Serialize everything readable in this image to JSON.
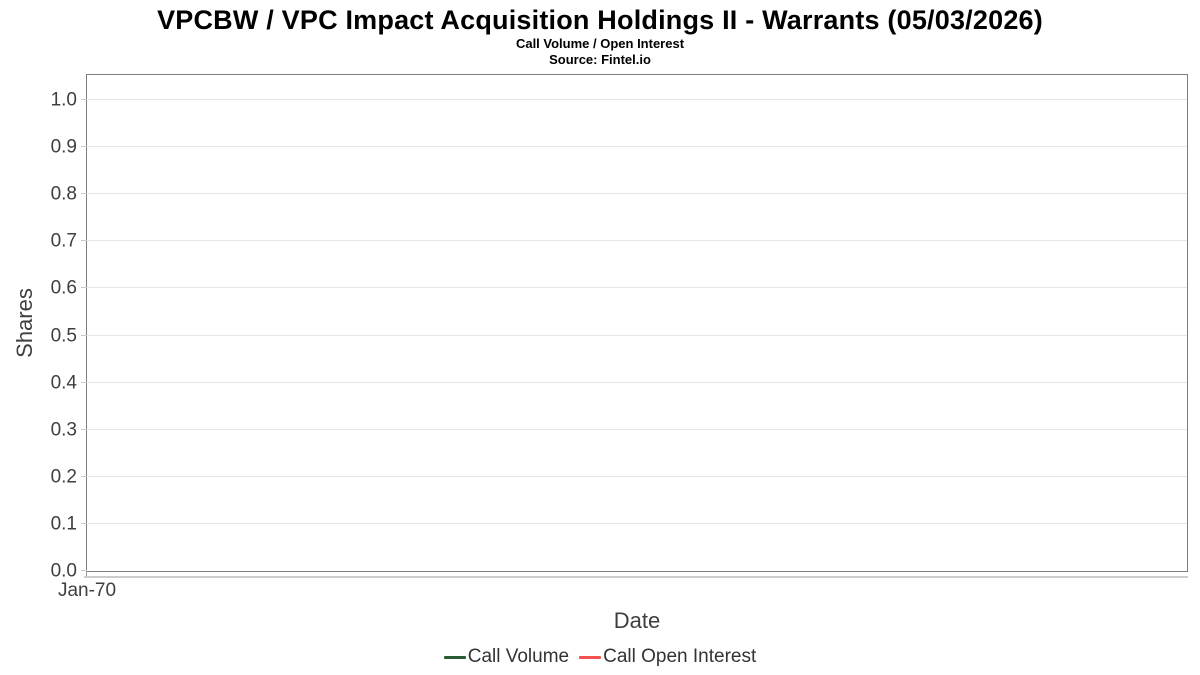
{
  "chart_data": {
    "type": "line",
    "title": "VPCBW / VPC Impact Acquisition Holdings II - Warrants (05/03/2026)",
    "subtitle": "Call Volume / Open Interest",
    "source": "Source: Fintel.io",
    "xlabel": "Date",
    "ylabel": "Shares",
    "ylim": [
      0.0,
      1.0
    ],
    "yticks": [
      0.0,
      0.1,
      0.2,
      0.3,
      0.4,
      0.5,
      0.6,
      0.7,
      0.8,
      0.9,
      1.0
    ],
    "xticks": [
      "Jan-70"
    ],
    "grid": true,
    "legend_position": "bottom",
    "series": [
      {
        "name": "Call Volume",
        "color": "#2a5c34",
        "x": [],
        "values": []
      },
      {
        "name": "Call Open Interest",
        "color": "#f4524e",
        "x": [],
        "values": []
      }
    ]
  }
}
